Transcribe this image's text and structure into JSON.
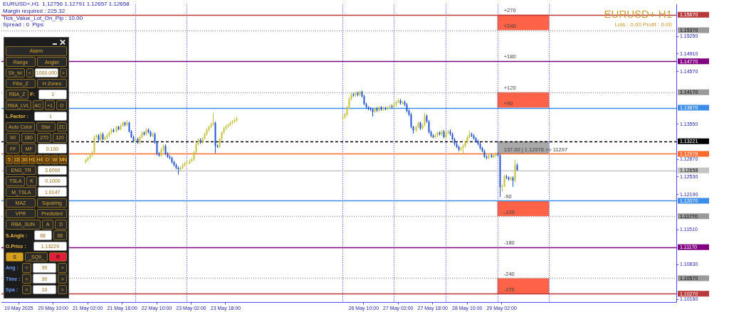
{
  "chart_data": {
    "type": "candlestick",
    "title": "EURUSD+,H1  1.12756 1.12791 1.12657 1.12658",
    "annotations": [
      "Margin required : 225.32",
      "Tick_Value_Lot_On_Pip : 10.00",
      "Spread : 0  Pips",
      "EURUSD+ H1",
      "Lots : 0.00 Profit : 0.00",
      "Alarm",
      "Range",
      "Angler",
      "Sh_lvl",
      "<",
      "1000.000",
      ">",
      "Fibo_Z",
      "H Zones",
      "RBA_Z",
      "F:",
      "1",
      "RBA_LVL",
      "AC",
      "+1",
      "O",
      "L.Factor :",
      "1",
      "Auto Color",
      "Star",
      "ZC",
      "90",
      "180",
      "270",
      "120",
      "FF",
      "MF",
      "0.100",
      "5",
      "15",
      "30",
      "H1",
      "H4",
      "D",
      "W",
      "MN",
      "ENG_TR",
      "3.6000",
      "TSLA",
      "K",
      "0.1000",
      "M_TSLA",
      "1.0147",
      "MAZ",
      "Squaring",
      "VPR",
      "Predicted",
      "RBA_SUN",
      "A",
      "D",
      "S.Angle :",
      "68",
      "68",
      "O.Price :",
      "1.13229",
      "S",
      "_SQ9_",
      "R",
      "Ang :",
      "<",
      "90",
      ">",
      "Time :",
      "<",
      "90",
      ">",
      "Spa :",
      "<",
      "10",
      ">",
      {
        "text": "+270",
        "x": "2025-05-29T04:00",
        "y": 1.1567
      },
      {
        "text": "+240",
        "x": "2025-05-29T04:00",
        "y": 1.1537
      },
      {
        "text": "+180",
        "x": "2025-05-29T04:00",
        "y": 1.1477
      },
      {
        "text": "+120",
        "x": "2025-05-29T04:00",
        "y": 1.1417
      },
      {
        "text": "+90",
        "x": "2025-05-29T04:00",
        "y": 1.1387
      },
      {
        "text": "137.00 | 1.12978 >> 11297",
        "x": "2025-05-29T04:00",
        "y": 1.12978
      },
      {
        "text": "-90",
        "x": "2025-05-29T04:00",
        "y": 1.1207
      },
      {
        "text": "-120",
        "x": "2025-05-29T04:00",
        "y": 1.1177
      },
      {
        "text": "-180",
        "x": "2025-05-29T04:00",
        "y": 1.1117
      },
      {
        "text": "-240",
        "x": "2025-05-29T04:00",
        "y": 1.1057
      },
      {
        "text": "-270",
        "x": "2025-05-29T04:00",
        "y": 1.1027
      }
    ],
    "x": [
      "2025-05-21T01:00",
      "2025-05-21T02:00",
      "2025-05-21T03:00",
      "2025-05-21T04:00",
      "2025-05-21T05:00",
      "2025-05-21T06:00",
      "2025-05-21T07:00",
      "2025-05-21T08:00",
      "2025-05-21T09:00",
      "2025-05-21T10:00",
      "2025-05-21T11:00",
      "2025-05-21T12:00",
      "2025-05-21T13:00",
      "2025-05-21T14:00",
      "2025-05-21T15:00",
      "2025-05-21T16:00",
      "2025-05-21T17:00",
      "2025-05-21T18:00",
      "2025-05-21T19:00",
      "2025-05-21T20:00",
      "2025-05-21T21:00",
      "2025-05-21T22:00",
      "2025-05-21T23:00",
      "2025-05-22T00:00",
      "2025-05-22T01:00",
      "2025-05-22T02:00",
      "2025-05-22T03:00",
      "2025-05-22T04:00",
      "2025-05-22T05:00",
      "2025-05-22T06:00",
      "2025-05-22T07:00",
      "2025-05-22T08:00",
      "2025-05-22T09:00",
      "2025-05-22T10:00",
      "2025-05-22T11:00",
      "2025-05-22T12:00",
      "2025-05-22T13:00",
      "2025-05-22T14:00",
      "2025-05-22T15:00",
      "2025-05-22T16:00",
      "2025-05-22T17:00",
      "2025-05-22T18:00",
      "2025-05-22T19:00",
      "2025-05-22T20:00",
      "2025-05-22T21:00",
      "2025-05-22T22:00",
      "2025-05-22T23:00",
      "2025-05-23T00:00",
      "2025-05-23T01:00",
      "2025-05-23T02:00",
      "2025-05-23T03:00",
      "2025-05-23T04:00",
      "2025-05-23T05:00",
      "2025-05-23T06:00",
      "2025-05-23T07:00",
      "2025-05-23T08:00",
      "2025-05-23T09:00",
      "2025-05-23T10:00",
      "2025-05-23T11:00",
      "2025-05-23T12:00",
      "2025-05-23T13:00",
      "2025-05-23T14:00",
      "2025-05-23T15:00",
      "2025-05-23T16:00",
      "2025-05-23T17:00",
      "2025-05-23T18:00",
      "2025-05-23T19:00",
      "2025-05-23T20:00",
      "2025-05-23T21:00",
      "2025-05-23T22:00",
      "2025-05-23T23:00",
      "2025-05-26T00:00",
      "2025-05-26T01:00",
      "2025-05-26T02:00",
      "2025-05-26T03:00",
      "2025-05-26T04:00",
      "2025-05-26T05:00",
      "2025-05-26T06:00",
      "2025-05-26T07:00",
      "2025-05-26T08:00",
      "2025-05-26T09:00",
      "2025-05-26T10:00",
      "2025-05-26T11:00",
      "2025-05-26T12:00",
      "2025-05-26T13:00",
      "2025-05-26T14:00",
      "2025-05-26T15:00",
      "2025-05-26T16:00",
      "2025-05-26T17:00",
      "2025-05-26T18:00",
      "2025-05-26T19:00",
      "2025-05-26T20:00",
      "2025-05-26T21:00",
      "2025-05-26T22:00",
      "2025-05-26T23:00",
      "2025-05-27T00:00",
      "2025-05-27T01:00",
      "2025-05-27T02:00",
      "2025-05-27T03:00",
      "2025-05-27T04:00",
      "2025-05-27T05:00",
      "2025-05-27T06:00",
      "2025-05-27T07:00",
      "2025-05-27T08:00",
      "2025-05-27T09:00",
      "2025-05-27T10:00",
      "2025-05-27T11:00",
      "2025-05-27T12:00",
      "2025-05-27T13:00",
      "2025-05-27T14:00",
      "2025-05-27T15:00",
      "2025-05-27T16:00",
      "2025-05-27T17:00",
      "2025-05-27T18:00",
      "2025-05-27T19:00",
      "2025-05-27T20:00",
      "2025-05-27T21:00",
      "2025-05-27T22:00",
      "2025-05-27T23:00",
      "2025-05-28T00:00",
      "2025-05-28T01:00",
      "2025-05-28T02:00",
      "2025-05-28T03:00",
      "2025-05-28T04:00",
      "2025-05-28T05:00",
      "2025-05-28T06:00",
      "2025-05-28T07:00",
      "2025-05-28T08:00",
      "2025-05-28T09:00",
      "2025-05-28T10:00",
      "2025-05-28T11:00",
      "2025-05-28T12:00",
      "2025-05-28T13:00",
      "2025-05-28T14:00",
      "2025-05-28T15:00",
      "2025-05-28T16:00",
      "2025-05-28T17:00",
      "2025-05-28T18:00",
      "2025-05-28T19:00",
      "2025-05-28T20:00",
      "2025-05-28T21:00",
      "2025-05-28T22:00",
      "2025-05-28T23:00",
      "2025-05-29T00:00",
      "2025-05-29T01:00",
      "2025-05-29T02:00",
      "2025-05-29T03:00",
      "2025-05-29T04:00",
      "2025-05-29T05:00",
      "2025-05-29T06:00",
      "2025-05-29T07:00",
      "2025-05-29T08:00",
      "2025-05-29T09:00"
    ],
    "ohlc": [
      [
        1.1282,
        1.1288,
        1.1279,
        1.1286
      ],
      [
        1.1286,
        1.1292,
        1.1283,
        1.129
      ],
      [
        1.129,
        1.1298,
        1.1287,
        1.1295
      ],
      [
        1.1295,
        1.1303,
        1.1292,
        1.1301
      ],
      [
        1.1301,
        1.1333,
        1.1298,
        1.133
      ],
      [
        1.133,
        1.1336,
        1.1328,
        1.1333
      ],
      [
        1.1333,
        1.1336,
        1.1322,
        1.1325
      ],
      [
        1.1325,
        1.1339,
        1.1322,
        1.1336
      ],
      [
        1.1336,
        1.1339,
        1.1324,
        1.1326
      ],
      [
        1.1326,
        1.1332,
        1.1324,
        1.1329
      ],
      [
        1.1329,
        1.1336,
        1.1326,
        1.1333
      ],
      [
        1.1333,
        1.1341,
        1.133,
        1.1339
      ],
      [
        1.1339,
        1.1347,
        1.1336,
        1.1344
      ],
      [
        1.1344,
        1.1347,
        1.1339,
        1.1341
      ],
      [
        1.1341,
        1.1352,
        1.1339,
        1.135
      ],
      [
        1.135,
        1.1352,
        1.1343,
        1.1345
      ],
      [
        1.1345,
        1.1355,
        1.1343,
        1.1352
      ],
      [
        1.1352,
        1.136,
        1.135,
        1.1358
      ],
      [
        1.1358,
        1.136,
        1.1351,
        1.1354
      ],
      [
        1.1354,
        1.1363,
        1.1351,
        1.1358
      ],
      [
        1.1358,
        1.136,
        1.1339,
        1.1341
      ],
      [
        1.1341,
        1.1344,
        1.1328,
        1.133
      ],
      [
        1.133,
        1.1333,
        1.132,
        1.1322
      ],
      [
        1.1322,
        1.1329,
        1.132,
        1.1326
      ],
      [
        1.1326,
        1.1329,
        1.1317,
        1.132
      ],
      [
        1.132,
        1.1333,
        1.1317,
        1.133
      ],
      [
        1.133,
        1.1341,
        1.1328,
        1.1339
      ],
      [
        1.1339,
        1.1341,
        1.1333,
        1.1336
      ],
      [
        1.1336,
        1.1347,
        1.1333,
        1.1344
      ],
      [
        1.1344,
        1.1347,
        1.1337,
        1.134
      ],
      [
        1.134,
        1.1343,
        1.133,
        1.1333
      ],
      [
        1.1333,
        1.1339,
        1.133,
        1.1336
      ],
      [
        1.1336,
        1.1339,
        1.1317,
        1.132
      ],
      [
        1.132,
        1.1322,
        1.1295,
        1.1298
      ],
      [
        1.1298,
        1.1301,
        1.1292,
        1.1295
      ],
      [
        1.1295,
        1.1309,
        1.1292,
        1.1306
      ],
      [
        1.1306,
        1.1316,
        1.1303,
        1.1313
      ],
      [
        1.1313,
        1.1316,
        1.1295,
        1.1298
      ],
      [
        1.1298,
        1.1301,
        1.129,
        1.1292
      ],
      [
        1.1292,
        1.1295,
        1.1287,
        1.129
      ],
      [
        1.129,
        1.1292,
        1.1279,
        1.1282
      ],
      [
        1.1282,
        1.1284,
        1.1273,
        1.1276
      ],
      [
        1.1276,
        1.1279,
        1.1268,
        1.1271
      ],
      [
        1.1271,
        1.1273,
        1.1258,
        1.1268
      ],
      [
        1.1268,
        1.1273,
        1.1265,
        1.1271
      ],
      [
        1.1271,
        1.1279,
        1.1268,
        1.1276
      ],
      [
        1.1276,
        1.1282,
        1.1273,
        1.1279
      ],
      [
        1.1279,
        1.1283,
        1.1276,
        1.128
      ],
      [
        1.128,
        1.1287,
        1.1277,
        1.1284
      ],
      [
        1.1284,
        1.129,
        1.1282,
        1.1287
      ],
      [
        1.1287,
        1.1303,
        1.1284,
        1.1301
      ],
      [
        1.1301,
        1.132,
        1.1298,
        1.1317
      ],
      [
        1.1317,
        1.1328,
        1.1314,
        1.1325
      ],
      [
        1.1325,
        1.1328,
        1.1317,
        1.132
      ],
      [
        1.132,
        1.133,
        1.1317,
        1.1328
      ],
      [
        1.1328,
        1.1339,
        1.1325,
        1.1336
      ],
      [
        1.1336,
        1.1347,
        1.1333,
        1.1344
      ],
      [
        1.1344,
        1.1352,
        1.1341,
        1.135
      ],
      [
        1.135,
        1.1358,
        1.1347,
        1.1355
      ],
      [
        1.1355,
        1.1377,
        1.1352,
        1.1358
      ],
      [
        1.1358,
        1.136,
        1.1299,
        1.1313
      ],
      [
        1.1313,
        1.1316,
        1.1309,
        1.1311
      ],
      [
        1.1311,
        1.1329,
        1.1309,
        1.1326
      ],
      [
        1.1326,
        1.1341,
        1.1324,
        1.1339
      ],
      [
        1.1339,
        1.135,
        1.1336,
        1.1347
      ],
      [
        1.1347,
        1.1354,
        1.1344,
        1.1351
      ],
      [
        1.1351,
        1.1356,
        1.1348,
        1.1354
      ],
      [
        1.1354,
        1.136,
        1.1351,
        1.1358
      ],
      [
        1.1358,
        1.1363,
        1.1355,
        1.136
      ],
      [
        1.136,
        1.1366,
        1.1358,
        1.1363
      ],
      [
        1.1363,
        1.1369,
        1.136,
        1.1366
      ],
      [
        1.1366,
        1.1371,
        1.1363,
        1.1369
      ],
      [
        1.1369,
        1.1377,
        1.1366,
        1.1374
      ],
      [
        1.1374,
        1.139,
        1.1371,
        1.1388
      ],
      [
        1.1388,
        1.1407,
        1.1385,
        1.1404
      ],
      [
        1.1404,
        1.1416,
        1.1401,
        1.1413
      ],
      [
        1.1413,
        1.1416,
        1.1408,
        1.1411
      ],
      [
        1.1411,
        1.1418,
        1.1408,
        1.1415
      ],
      [
        1.1415,
        1.1418,
        1.1409,
        1.1412
      ],
      [
        1.1412,
        1.142,
        1.1409,
        1.1418
      ],
      [
        1.1418,
        1.142,
        1.1407,
        1.1409
      ],
      [
        1.1409,
        1.1412,
        1.1392,
        1.1394
      ],
      [
        1.1394,
        1.1397,
        1.1385,
        1.1388
      ],
      [
        1.1388,
        1.139,
        1.1382,
        1.1385
      ],
      [
        1.1385,
        1.1388,
        1.1381,
        1.1384
      ],
      [
        1.1384,
        1.1386,
        1.137,
        1.1379
      ],
      [
        1.1379,
        1.1388,
        1.1377,
        1.1385
      ],
      [
        1.1385,
        1.1388,
        1.1379,
        1.1382
      ],
      [
        1.1382,
        1.139,
        1.1379,
        1.1388
      ],
      [
        1.1388,
        1.139,
        1.1381,
        1.1384
      ],
      [
        1.1384,
        1.1389,
        1.1381,
        1.1386
      ],
      [
        1.1386,
        1.1389,
        1.1382,
        1.1385
      ],
      [
        1.1385,
        1.139,
        1.1382,
        1.1388
      ],
      [
        1.1388,
        1.1393,
        1.1385,
        1.139
      ],
      [
        1.139,
        1.1393,
        1.1385,
        1.1388
      ],
      [
        1.1388,
        1.1396,
        1.1385,
        1.1393
      ],
      [
        1.1393,
        1.1401,
        1.139,
        1.1398
      ],
      [
        1.1398,
        1.1405,
        1.1396,
        1.1401
      ],
      [
        1.1401,
        1.1404,
        1.1393,
        1.1396
      ],
      [
        1.1396,
        1.1401,
        1.1393,
        1.1398
      ],
      [
        1.1398,
        1.1401,
        1.139,
        1.1393
      ],
      [
        1.1393,
        1.1396,
        1.1378,
        1.1381
      ],
      [
        1.1381,
        1.1384,
        1.1371,
        1.1374
      ],
      [
        1.1374,
        1.1377,
        1.1347,
        1.135
      ],
      [
        1.135,
        1.1352,
        1.1337,
        1.1343
      ],
      [
        1.1343,
        1.1352,
        1.134,
        1.135
      ],
      [
        1.135,
        1.136,
        1.1347,
        1.1358
      ],
      [
        1.1358,
        1.136,
        1.1344,
        1.1347
      ],
      [
        1.1347,
        1.1356,
        1.1344,
        1.1354
      ],
      [
        1.1354,
        1.1377,
        1.1351,
        1.1371
      ],
      [
        1.1371,
        1.1374,
        1.1358,
        1.136
      ],
      [
        1.136,
        1.1363,
        1.1337,
        1.134
      ],
      [
        1.134,
        1.1343,
        1.133,
        1.1333
      ],
      [
        1.1333,
        1.1336,
        1.1328,
        1.133
      ],
      [
        1.133,
        1.1336,
        1.1328,
        1.1333
      ],
      [
        1.1333,
        1.1341,
        1.133,
        1.1339
      ],
      [
        1.1339,
        1.1341,
        1.1333,
        1.1336
      ],
      [
        1.1336,
        1.1344,
        1.1333,
        1.1341
      ],
      [
        1.1341,
        1.1344,
        1.1328,
        1.133
      ],
      [
        1.133,
        1.1341,
        1.1328,
        1.1339
      ],
      [
        1.1339,
        1.1344,
        1.1336,
        1.1341
      ],
      [
        1.1341,
        1.1345,
        1.1333,
        1.1336
      ],
      [
        1.1336,
        1.1339,
        1.1324,
        1.1326
      ],
      [
        1.1326,
        1.1329,
        1.1314,
        1.1317
      ],
      [
        1.1317,
        1.132,
        1.1309,
        1.1311
      ],
      [
        1.1311,
        1.1314,
        1.1303,
        1.1306
      ],
      [
        1.1306,
        1.1311,
        1.1303,
        1.1309
      ],
      [
        1.1309,
        1.1316,
        1.1296,
        1.1313
      ],
      [
        1.1313,
        1.1322,
        1.131,
        1.132
      ],
      [
        1.132,
        1.1333,
        1.1317,
        1.133
      ],
      [
        1.133,
        1.1343,
        1.1328,
        1.1336
      ],
      [
        1.1336,
        1.1339,
        1.133,
        1.1333
      ],
      [
        1.1333,
        1.1336,
        1.1325,
        1.1328
      ],
      [
        1.1328,
        1.133,
        1.132,
        1.1322
      ],
      [
        1.1322,
        1.1325,
        1.1314,
        1.1317
      ],
      [
        1.1317,
        1.132,
        1.1306,
        1.1309
      ],
      [
        1.1309,
        1.1311,
        1.1301,
        1.1303
      ],
      [
        1.1303,
        1.1306,
        1.129,
        1.1292
      ],
      [
        1.1292,
        1.1295,
        1.1287,
        1.129
      ],
      [
        1.129,
        1.1298,
        1.1287,
        1.1295
      ],
      [
        1.1295,
        1.1298,
        1.129,
        1.1292
      ],
      [
        1.1292,
        1.1298,
        1.129,
        1.1295
      ],
      [
        1.1295,
        1.1301,
        1.1292,
        1.1298
      ],
      [
        1.1298,
        1.1301,
        1.1292,
        1.1295
      ],
      [
        1.1295,
        1.1298,
        1.1214,
        1.1233
      ],
      [
        1.1233,
        1.1238,
        1.1224,
        1.1235
      ],
      [
        1.1235,
        1.1257,
        1.1233,
        1.1254
      ],
      [
        1.1254,
        1.1257,
        1.1249,
        1.1252
      ],
      [
        1.1252,
        1.1254,
        1.1246,
        1.1249
      ],
      [
        1.1249,
        1.1254,
        1.1246,
        1.1252
      ],
      [
        1.1252,
        1.1254,
        1.1234,
        1.1246
      ],
      [
        1.1246,
        1.1286,
        1.1243,
        1.1276
      ],
      [
        1.12756,
        1.12791,
        1.12657,
        1.12658
      ]
    ],
    "colors": [
      "#c8c13a",
      "#c8c13a",
      "#c8c13a",
      "#c8c13a",
      "#c8c13a",
      "#c8c13a",
      "#2055d0",
      "#c8c13a",
      "#2055d0",
      "#c8c13a",
      "#c8c13a",
      "#c8c13a",
      "#c8c13a",
      "#2055d0",
      "#c8c13a",
      "#2055d0",
      "#c8c13a",
      "#c8c13a",
      "#2055d0",
      "#c8c13a",
      "#2055d0",
      "#2055d0",
      "#2055d0",
      "#c8c13a",
      "#2055d0",
      "#c8c13a",
      "#c8c13a",
      "#2055d0",
      "#c8c13a",
      "#2055d0",
      "#2055d0",
      "#c8c13a",
      "#2055d0",
      "#2055d0",
      "#2055d0",
      "#c8c13a",
      "#c8c13a",
      "#2055d0",
      "#2055d0",
      "#2055d0",
      "#2055d0",
      "#2055d0",
      "#2055d0",
      "#2055d0",
      "#c8c13a",
      "#c8c13a",
      "#c8c13a",
      "#c8c13a",
      "#c8c13a",
      "#c8c13a",
      "#c8c13a",
      "#c8c13a",
      "#c8c13a",
      "#2055d0",
      "#c8c13a",
      "#c8c13a",
      "#c8c13a",
      "#c8c13a",
      "#c8c13a",
      "#c8c13a",
      "#2055d0",
      "#2055d0",
      "#c8c13a",
      "#c8c13a",
      "#c8c13a",
      "#c8c13a",
      "#c8c13a",
      "#c8c13a",
      "#c8c13a",
      "#c8c13a",
      "#c8c13a",
      "#c8c13a",
      "#c8c13a",
      "#c8c13a",
      "#c8c13a",
      "#c8c13a",
      "#2055d0",
      "#c8c13a",
      "#2055d0",
      "#c8c13a",
      "#2055d0",
      "#2055d0",
      "#2055d0",
      "#2055d0",
      "#2055d0",
      "#2055d0",
      "#c8c13a",
      "#2055d0",
      "#c8c13a",
      "#2055d0",
      "#c8c13a",
      "#2055d0",
      "#c8c13a",
      "#c8c13a",
      "#2055d0",
      "#c8c13a",
      "#c8c13a",
      "#c8c13a",
      "#2055d0",
      "#c8c13a",
      "#2055d0",
      "#2055d0",
      "#2055d0",
      "#2055d0",
      "#2055d0",
      "#c8c13a",
      "#c8c13a",
      "#2055d0",
      "#c8c13a",
      "#c8c13a",
      "#2055d0",
      "#2055d0",
      "#2055d0",
      "#2055d0",
      "#c8c13a",
      "#c8c13a",
      "#2055d0",
      "#c8c13a",
      "#2055d0",
      "#c8c13a",
      "#c8c13a",
      "#2055d0",
      "#2055d0",
      "#2055d0",
      "#2055d0",
      "#2055d0",
      "#c8c13a",
      "#c8c13a",
      "#c8c13a",
      "#c8c13a",
      "#c8c13a",
      "#2055d0",
      "#2055d0",
      "#2055d0",
      "#2055d0",
      "#2055d0",
      "#2055d0",
      "#2055d0",
      "#2055d0",
      "#c8c13a",
      "#2055d0",
      "#c8c13a",
      "#c8c13a",
      "#2055d0",
      "#2055d0",
      "#c8c13a",
      "#c8c13a",
      "#2055d0",
      "#2055d0",
      "#c8c13a",
      "#2055d0",
      "#c8c13a",
      "#2055d0"
    ],
    "xlim": [
      "2025-05-19T10:00",
      "2025-06-01T11:00"
    ],
    "xticks": [
      {
        "value": "2025-05-19T18:00",
        "label": "19 May 2025"
      },
      {
        "value": "2025-05-20T10:00",
        "label": "20 May 10:00"
      },
      {
        "value": "2025-05-21T02:00",
        "label": "21 May 02:00"
      },
      {
        "value": "2025-05-21T18:00",
        "label": "21 May 18:00"
      },
      {
        "value": "2025-05-22T10:00",
        "label": "22 May 10:00"
      },
      {
        "value": "2025-05-23T02:00",
        "label": "23 May 02:00"
      },
      {
        "value": "2025-05-23T18:00",
        "label": "23 May 18:00"
      },
      {
        "value": "2025-05-26T10:00",
        "label": "26 May 10:00"
      },
      {
        "value": "2025-05-27T02:00",
        "label": "27 May 02:00"
      },
      {
        "value": "2025-05-27T18:00",
        "label": "27 May 18:00"
      },
      {
        "value": "2025-05-28T10:00",
        "label": "28 May 10:00"
      },
      {
        "value": "2025-05-29T02:00",
        "label": "29 May 02:00"
      }
    ],
    "ylim": [
      1.101,
      1.1587
    ],
    "yticks": [
      {
        "value": 1.1525,
        "label": "1.15250"
      },
      {
        "value": 1.1491,
        "label": "1.14910"
      },
      {
        "value": 1.1457,
        "label": "1.14570"
      },
      {
        "value": 1.1355,
        "label": "1.13550"
      },
      {
        "value": 1.1287,
        "label": "1.12870"
      },
      {
        "value": 1.1253,
        "label": "1.12530"
      },
      {
        "value": 1.1219,
        "label": "1.12190"
      },
      {
        "value": 1.1151,
        "label": "1.11510"
      },
      {
        "value": 1.1083,
        "label": "1.10830"
      },
      {
        "value": 1.1016,
        "label": "1.10160"
      }
    ],
    "ref_lines": [
      {
        "axis": "x",
        "value": "2025-05-22T00:00",
        "color": "#3535ff",
        "line_style": "dotted"
      },
      {
        "axis": "x",
        "value": "2025-05-23T00:00",
        "color": "#3535ff",
        "line_style": "dotted"
      },
      {
        "axis": "x",
        "value": "2025-05-26T00:00",
        "color": "#3535ff",
        "line_style": "dotted"
      },
      {
        "axis": "x",
        "value": "2025-05-27T00:00",
        "color": "#3535ff",
        "line_style": "dotted"
      },
      {
        "axis": "x",
        "value": "2025-05-28T00:00",
        "color": "#3535ff",
        "line_style": "dotted"
      },
      {
        "axis": "x",
        "value": "2025-05-29T00:00",
        "color": "#3535ff",
        "line_style": "dotted"
      },
      {
        "axis": "x",
        "value": "2025-05-30T00:00",
        "color": "#3535ff",
        "line_style": "dotted"
      },
      {
        "axis": "y",
        "value": 1.1567,
        "label": "1.15670",
        "color": "#b83a3a",
        "line_style": "solid"
      },
      {
        "axis": "y",
        "value": 1.1537,
        "label": "1.15370",
        "color": "#9a9a9a",
        "line_style": "dotted"
      },
      {
        "axis": "y",
        "value": 1.1477,
        "label": "1.14770",
        "color": "#800080",
        "line_style": "solid"
      },
      {
        "axis": "y",
        "value": 1.1417,
        "label": "1.14170",
        "color": "#9a9a9a",
        "line_style": "dotted"
      },
      {
        "axis": "y",
        "value": 1.1387,
        "label": "1.13870",
        "color": "#3d8ee8",
        "line_style": "solid"
      },
      {
        "axis": "y",
        "value": 1.13221,
        "label": "1.13221",
        "color": "#000000",
        "line_style": "dashed"
      },
      {
        "axis": "y",
        "value": 1.12978,
        "label": "1.12978",
        "color": "#ff6a2a",
        "line_style": "solid"
      },
      {
        "axis": "y",
        "value": 1.12658,
        "label": "1.12658",
        "color": "#c4c4c4",
        "line_style": "solid"
      },
      {
        "axis": "y",
        "value": 1.1207,
        "label": "1.12070",
        "color": "#3d8ee8",
        "line_style": "solid"
      },
      {
        "axis": "y",
        "value": 1.1177,
        "label": "1.11770",
        "color": "#9a9a9a",
        "line_style": "dotted"
      },
      {
        "axis": "y",
        "value": 1.1117,
        "label": "1.11170",
        "color": "#800080",
        "line_style": "solid"
      },
      {
        "axis": "y",
        "value": 1.1057,
        "label": "1.10570",
        "color": "#9a9a9a",
        "line_style": "dotted"
      },
      {
        "axis": "y",
        "value": 1.1027,
        "label": "1.10270",
        "color": "#b83a3a",
        "line_style": "solid"
      }
    ],
    "bands": [
      {
        "axis": "y",
        "from": 1.1537,
        "to": 1.1567,
        "color": "#ff6347"
      },
      {
        "axis": "y",
        "from": 1.1387,
        "to": 1.1417,
        "color": "#ff6347"
      },
      {
        "axis": "y",
        "from": 1.12978,
        "to": 1.13221,
        "color": "#a9a9a9"
      },
      {
        "axis": "y",
        "from": 1.1177,
        "to": 1.1207,
        "color": "#ff6347"
      },
      {
        "axis": "y",
        "from": 1.1027,
        "to": 1.1057,
        "color": "#ff6347"
      }
    ]
  }
}
